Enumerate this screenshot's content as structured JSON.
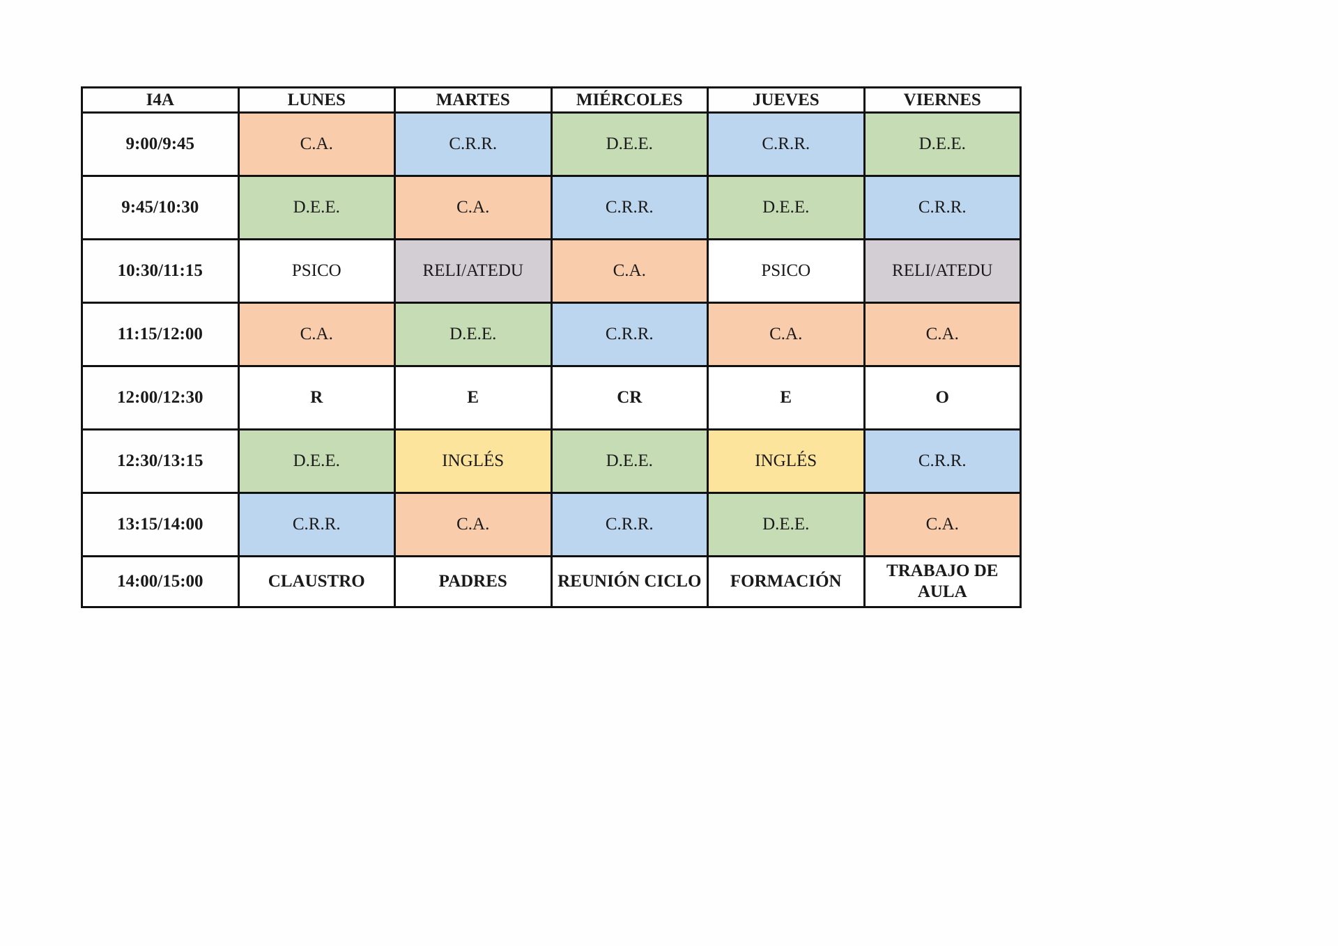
{
  "colors": {
    "C.A.": "#f9cdac",
    "C.R.R.": "#bdd6f0",
    "D.E.E.": "#c6dcb4",
    "RELI/ATEDU": "#d2ced3",
    "INGLÉS": "#fde49c",
    "default": "#ffffff"
  },
  "table": {
    "corner": "I4A",
    "days": [
      "LUNES",
      "MARTES",
      "MIÉRCOLES",
      "JUEVES",
      "VIERNES"
    ],
    "rows": [
      {
        "time": "9:00/9:45",
        "cells": [
          "C.A.",
          "C.R.R.",
          "D.E.E.",
          "C.R.R.",
          "D.E.E."
        ]
      },
      {
        "time": "9:45/10:30",
        "cells": [
          "D.E.E.",
          "C.A.",
          "C.R.R.",
          "D.E.E.",
          "C.R.R."
        ]
      },
      {
        "time": "10:30/11:15",
        "cells": [
          "PSICO",
          "RELI/ATEDU",
          "C.A.",
          "PSICO",
          "RELI/ATEDU"
        ]
      },
      {
        "time": "11:15/12:00",
        "cells": [
          "C.A.",
          "D.E.E.",
          "C.R.R.",
          "C.A.",
          "C.A."
        ]
      },
      {
        "time": "12:00/12:30",
        "cells": [
          "R",
          "E",
          "CR",
          "E",
          "O"
        ]
      },
      {
        "time": "12:30/13:15",
        "cells": [
          "D.E.E.",
          "INGLÉS",
          "D.E.E.",
          "INGLÉS",
          "C.R.R."
        ]
      },
      {
        "time": "13:15/14:00",
        "cells": [
          "C.R.R.",
          "C.A.",
          "C.R.R.",
          "D.E.E.",
          "C.A."
        ]
      },
      {
        "time": "14:00/15:00",
        "cells": [
          "CLAUSTRO",
          "PADRES",
          "REUNIÓN CICLO",
          "FORMACIÓN",
          "TRABAJO DE AULA"
        ]
      }
    ]
  }
}
